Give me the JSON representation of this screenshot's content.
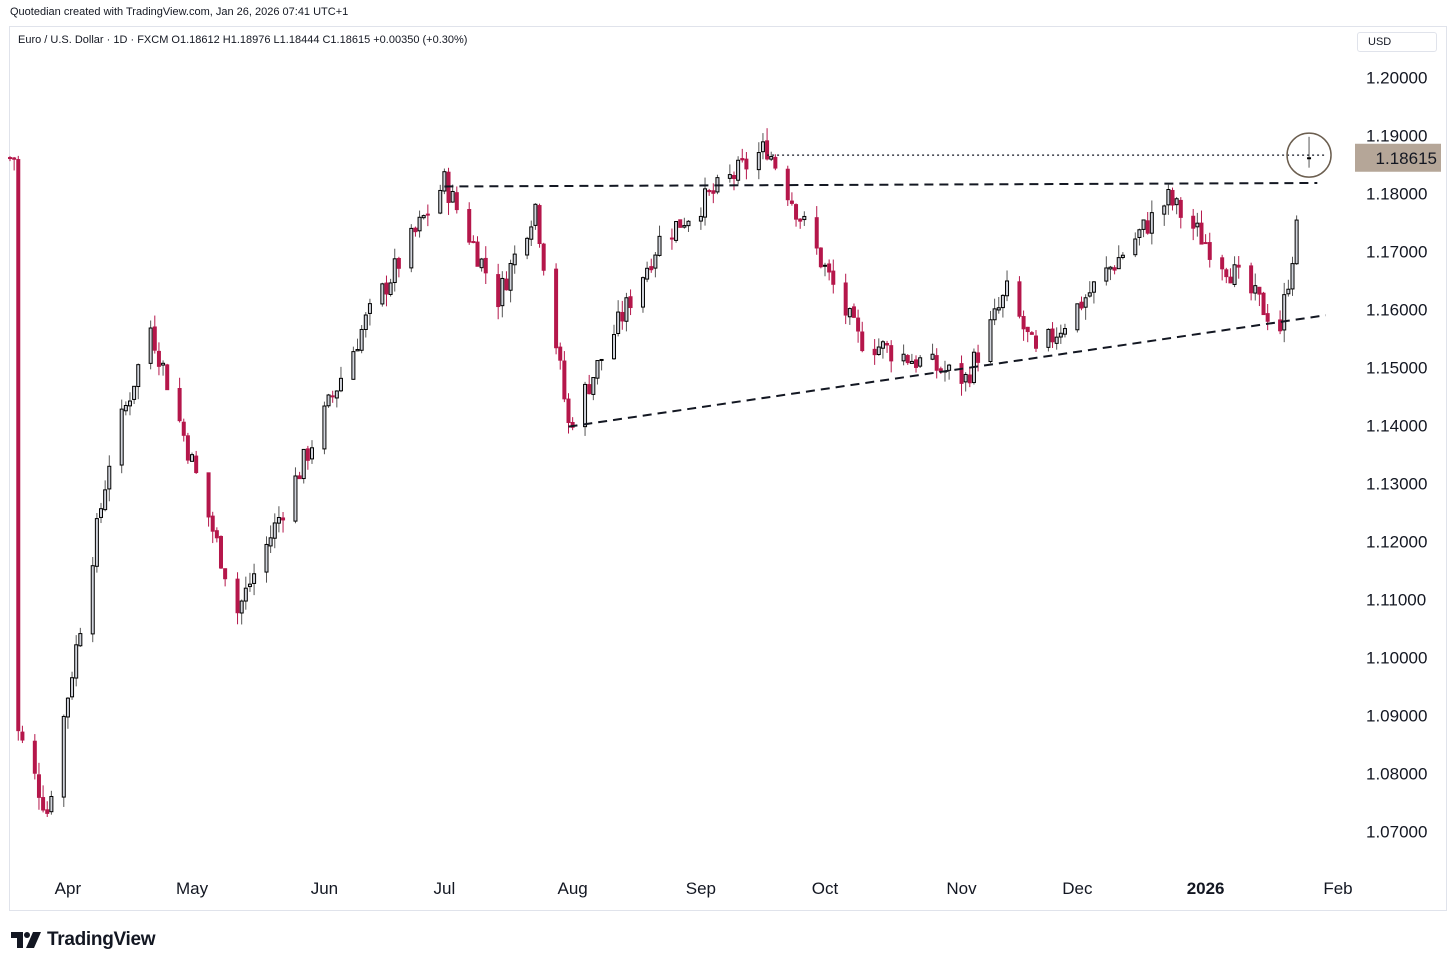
{
  "header": {
    "credit": "Quotedian created with TradingView.com, Jan 26, 2026 07:41 UTC+1",
    "symbol_line": "Euro / U.S. Dollar · 1D · FXCM  O1.18612  H1.18976  L1.18444  C1.18615  +0.00350 (+0.30%)"
  },
  "price_scale": {
    "currency": "USD"
  },
  "brand": {
    "name": "TradingView",
    "icon": "tradingview-logo-icon"
  },
  "colors": {
    "up_body": "#d1d4dc",
    "up_border": "#000000",
    "down": "#b5174b",
    "wick_down": "#b5174b",
    "price_tag_bg": "#b5a698"
  },
  "chart_data": {
    "type": "candlestick",
    "title": "Euro / U.S. Dollar",
    "interval": "1D",
    "source": "FXCM",
    "ohlc_last": {
      "open": 1.18612,
      "high": 1.18976,
      "low": 1.18444,
      "close": 1.18615,
      "change": 0.0035,
      "change_pct": "+0.30%"
    },
    "ylim": [
      1.062,
      1.203
    ],
    "y_ticks": [
      "1.07000",
      "1.08000",
      "1.09000",
      "1.10000",
      "1.11000",
      "1.12000",
      "1.13000",
      "1.14000",
      "1.15000",
      "1.16000",
      "1.17000",
      "1.18000",
      "1.19000",
      "1.20000"
    ],
    "x_ticks": [
      {
        "label": "Apr",
        "date": "2025-04-01"
      },
      {
        "label": "May",
        "date": "2025-05-01"
      },
      {
        "label": "Jun",
        "date": "2025-06-02"
      },
      {
        "label": "Jul",
        "date": "2025-07-01"
      },
      {
        "label": "Aug",
        "date": "2025-08-01"
      },
      {
        "label": "Sep",
        "date": "2025-09-01"
      },
      {
        "label": "Oct",
        "date": "2025-10-01"
      },
      {
        "label": "Nov",
        "date": "2025-11-03"
      },
      {
        "label": "Dec",
        "date": "2025-12-01"
      },
      {
        "label": "2026",
        "date": "2026-01-01",
        "bold": true
      },
      {
        "label": "Feb",
        "date": "2026-02-02"
      }
    ],
    "last_price_label": "1.18615",
    "key_points": [
      {
        "date": "2025-03-20",
        "price": 1.087
      },
      {
        "date": "2025-03-27",
        "price": 1.0735
      },
      {
        "date": "2025-04-11",
        "price": 1.134
      },
      {
        "date": "2025-04-21",
        "price": 1.157
      },
      {
        "date": "2025-05-12",
        "price": 1.108
      },
      {
        "date": "2025-06-12",
        "price": 1.158
      },
      {
        "date": "2025-07-01",
        "price": 1.182
      },
      {
        "date": "2025-07-14",
        "price": 1.162
      },
      {
        "date": "2025-07-23",
        "price": 1.178
      },
      {
        "date": "2025-07-31",
        "price": 1.14
      },
      {
        "date": "2025-08-22",
        "price": 1.172
      },
      {
        "date": "2025-09-17",
        "price": 1.188
      },
      {
        "date": "2025-10-09",
        "price": 1.155
      },
      {
        "date": "2025-11-04",
        "price": 1.148
      },
      {
        "date": "2025-11-14",
        "price": 1.163
      },
      {
        "date": "2025-11-21",
        "price": 1.152
      },
      {
        "date": "2025-12-23",
        "price": 1.179
      },
      {
        "date": "2026-01-19",
        "price": 1.157
      },
      {
        "date": "2026-01-26",
        "price": 1.18615
      }
    ],
    "annotations": [
      {
        "type": "dashed-line",
        "from": {
          "date": "2025-07-01",
          "price": 1.1812
        },
        "to": {
          "date": "2026-01-28",
          "price": 1.1818
        }
      },
      {
        "type": "dashed-line",
        "from": {
          "date": "2025-07-31",
          "price": 1.1398
        },
        "to": {
          "date": "2026-01-30",
          "price": 1.159
        }
      },
      {
        "type": "dotted-line",
        "from": {
          "date": "2025-09-17",
          "price": 1.1866
        },
        "to": {
          "date": "2026-01-30",
          "price": 1.1866
        }
      },
      {
        "type": "circle",
        "at": {
          "date": "2026-01-26",
          "price": 1.1866
        }
      }
    ]
  }
}
